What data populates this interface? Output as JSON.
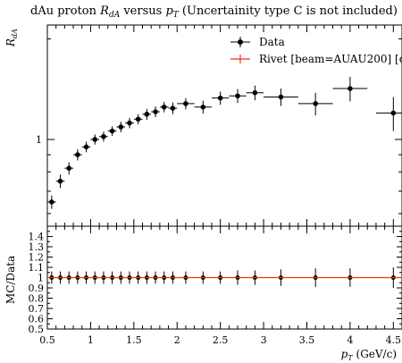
{
  "chart_data": {
    "type": "scatter",
    "title": "dAu proton R_dA versus p_T (Uncertainity type C is not included)",
    "title_parts": {
      "prefix": "dAu proton ",
      "r_main": "R",
      "r_sub": "dA",
      "mid": " versus ",
      "p_main": "p",
      "p_sub": "T",
      "suffix": " (Uncertainity type C is not included)"
    },
    "ylabel": {
      "main": "R",
      "sub": "dA"
    },
    "xlabel": {
      "main": "p",
      "sub": "T",
      "unit": " (GeV/c)"
    },
    "ratio_ylabel": "MC/Data",
    "xlim": [
      0.5,
      4.6
    ],
    "ylim_main_log": [
      0.55,
      2.2
    ],
    "ratio_ylim": [
      0.5,
      1.5
    ],
    "main_yticks": [
      {
        "value": 1,
        "label": "1"
      }
    ],
    "xticks": [
      {
        "value": 0.5,
        "label": "0.5"
      },
      {
        "value": 1,
        "label": "1"
      },
      {
        "value": 1.5,
        "label": "1.5"
      },
      {
        "value": 2,
        "label": "2"
      },
      {
        "value": 2.5,
        "label": "2.5"
      },
      {
        "value": 3,
        "label": "3"
      },
      {
        "value": 3.5,
        "label": "3.5"
      },
      {
        "value": 4,
        "label": "4"
      },
      {
        "value": 4.5,
        "label": "4.5"
      }
    ],
    "ratio_yticks": [
      {
        "value": 0.5,
        "label": "0.5"
      },
      {
        "value": 0.6,
        "label": "0.6"
      },
      {
        "value": 0.7,
        "label": "0.7"
      },
      {
        "value": 0.8,
        "label": "0.8"
      },
      {
        "value": 0.9,
        "label": "0.9"
      },
      {
        "value": 1.0,
        "label": "1"
      },
      {
        "value": 1.1,
        "label": "1.1"
      },
      {
        "value": 1.2,
        "label": "1.2"
      },
      {
        "value": 1.3,
        "label": "1.3"
      },
      {
        "value": 1.4,
        "label": "1.4"
      }
    ],
    "legend": {
      "placement": "top-right",
      "entries": [
        {
          "label": "Data",
          "color": "#000000",
          "style": "point"
        },
        {
          "label": "Rivet [beam=AUAU200] [c",
          "color": "#ee3311",
          "style": "line"
        }
      ]
    },
    "series": [
      {
        "name": "Data",
        "color": "#000000",
        "x": [
          0.55,
          0.65,
          0.75,
          0.85,
          0.95,
          1.05,
          1.15,
          1.25,
          1.35,
          1.45,
          1.55,
          1.65,
          1.75,
          1.85,
          1.95,
          2.1,
          2.3,
          2.5,
          2.7,
          2.9,
          3.2,
          3.6,
          4.0,
          4.5
        ],
        "x_err": [
          0.05,
          0.05,
          0.05,
          0.05,
          0.05,
          0.05,
          0.05,
          0.05,
          0.05,
          0.05,
          0.05,
          0.05,
          0.05,
          0.05,
          0.05,
          0.1,
          0.1,
          0.1,
          0.1,
          0.1,
          0.2,
          0.2,
          0.2,
          0.2
        ],
        "y": [
          0.65,
          0.75,
          0.82,
          0.9,
          0.95,
          1.0,
          1.02,
          1.06,
          1.09,
          1.12,
          1.15,
          1.19,
          1.21,
          1.25,
          1.24,
          1.28,
          1.25,
          1.33,
          1.35,
          1.38,
          1.34,
          1.28,
          1.42,
          1.2
        ],
        "y_err": [
          0.03,
          0.035,
          0.035,
          0.035,
          0.035,
          0.035,
          0.035,
          0.035,
          0.04,
          0.04,
          0.04,
          0.045,
          0.045,
          0.045,
          0.05,
          0.05,
          0.055,
          0.06,
          0.065,
          0.07,
          0.08,
          0.1,
          0.12,
          0.14
        ],
        "ratio_y": [
          1,
          1,
          1,
          1,
          1,
          1,
          1,
          1,
          1,
          1,
          1,
          1,
          1,
          1,
          1,
          1,
          1,
          1,
          1,
          1,
          1,
          1,
          1,
          1
        ],
        "ratio_y_err": [
          0.06,
          0.06,
          0.06,
          0.06,
          0.06,
          0.06,
          0.06,
          0.06,
          0.06,
          0.06,
          0.06,
          0.06,
          0.06,
          0.06,
          0.06,
          0.06,
          0.06,
          0.06,
          0.07,
          0.07,
          0.08,
          0.09,
          0.09,
          0.1
        ]
      }
    ]
  }
}
